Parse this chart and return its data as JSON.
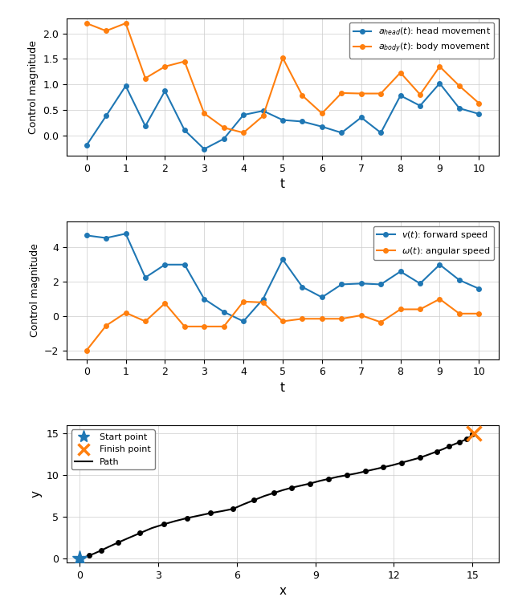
{
  "plot1": {
    "t": [
      0,
      0.5,
      1,
      1.5,
      2,
      2.5,
      3,
      3.5,
      4,
      4.5,
      5,
      5.5,
      6,
      6.5,
      7,
      7.5,
      8,
      8.5,
      9,
      9.5,
      10
    ],
    "head": [
      -0.2,
      0.38,
      0.97,
      0.18,
      0.87,
      0.1,
      -0.27,
      -0.07,
      0.4,
      0.48,
      0.3,
      0.27,
      0.17,
      0.05,
      0.35,
      0.05,
      0.78,
      0.58,
      1.02,
      0.53,
      0.42
    ],
    "body": [
      2.2,
      2.05,
      2.2,
      1.12,
      1.35,
      1.45,
      0.43,
      0.15,
      0.05,
      0.38,
      1.52,
      0.78,
      0.43,
      0.83,
      0.82,
      0.82,
      1.23,
      0.8,
      1.35,
      0.97,
      0.63
    ],
    "xlabel": "t",
    "ylabel": "Control magnitude",
    "label_head": "$a_{head}(t)$: head movement",
    "label_body": "$a_{body}(t)$: body movement",
    "ylim": [
      -0.4,
      2.3
    ]
  },
  "plot2": {
    "t": [
      0,
      0.5,
      1,
      1.5,
      2,
      2.5,
      3,
      3.5,
      4,
      4.5,
      5,
      5.5,
      6,
      6.5,
      7,
      7.5,
      8,
      8.5,
      9,
      9.5,
      10
    ],
    "v": [
      4.7,
      4.55,
      4.8,
      2.25,
      3.0,
      3.0,
      1.0,
      0.25,
      -0.3,
      1.0,
      3.3,
      1.7,
      1.1,
      1.85,
      1.9,
      1.85,
      2.6,
      1.9,
      3.0,
      2.1,
      1.6
    ],
    "omega": [
      -2.0,
      -0.55,
      0.2,
      -0.3,
      0.75,
      -0.6,
      -0.6,
      -0.6,
      0.85,
      0.8,
      -0.3,
      -0.15,
      -0.15,
      -0.15,
      0.05,
      -0.35,
      0.4,
      0.4,
      1.0,
      0.15,
      0.15
    ],
    "xlabel": "t",
    "ylabel": "Control magnitude",
    "label_v": "$v(t)$: forward speed",
    "label_omega": "$\\omega(t)$: angular speed",
    "ylim": [
      -2.5,
      5.5
    ]
  },
  "plot3": {
    "path_x": [
      0.0,
      0.1,
      0.2,
      0.35,
      0.55,
      0.8,
      1.1,
      1.45,
      1.85,
      2.3,
      2.75,
      3.2,
      3.65,
      4.1,
      4.55,
      5.0,
      5.45,
      5.85,
      6.25,
      6.65,
      7.05,
      7.4,
      7.75,
      8.1,
      8.45,
      8.8,
      9.15,
      9.5,
      9.85,
      10.2,
      10.55,
      10.9,
      11.25,
      11.6,
      11.95,
      12.3,
      12.65,
      13.0,
      13.35,
      13.65,
      13.9,
      14.1,
      14.3,
      14.5,
      14.65,
      14.78,
      14.88,
      14.95,
      15.0,
      15.05
    ],
    "path_y": [
      0.0,
      0.08,
      0.18,
      0.35,
      0.6,
      0.95,
      1.4,
      1.9,
      2.45,
      3.05,
      3.65,
      4.1,
      4.5,
      4.85,
      5.15,
      5.45,
      5.7,
      5.95,
      6.5,
      7.0,
      7.5,
      7.85,
      8.2,
      8.5,
      8.75,
      9.0,
      9.3,
      9.55,
      9.8,
      10.0,
      10.2,
      10.45,
      10.7,
      10.95,
      11.2,
      11.5,
      11.8,
      12.1,
      12.5,
      12.85,
      13.15,
      13.45,
      13.7,
      13.95,
      14.15,
      14.35,
      14.55,
      14.72,
      14.88,
      15.0
    ],
    "dot_x": [
      0.0,
      0.35,
      0.8,
      1.45,
      2.3,
      3.2,
      4.1,
      5.0,
      5.85,
      6.65,
      7.4,
      8.1,
      8.8,
      9.5,
      10.2,
      10.9,
      11.6,
      12.3,
      13.0,
      13.65,
      14.1,
      14.5,
      14.78,
      15.0
    ],
    "dot_y": [
      0.0,
      0.35,
      0.95,
      1.9,
      3.05,
      4.1,
      4.85,
      5.45,
      5.95,
      7.0,
      7.85,
      8.5,
      9.0,
      9.55,
      10.0,
      10.45,
      10.95,
      11.5,
      12.1,
      12.85,
      13.45,
      13.95,
      14.35,
      14.88
    ],
    "start_x": 0.0,
    "start_y": 0.0,
    "end_x": 15.05,
    "end_y": 15.0,
    "xlabel": "x",
    "ylabel": "y",
    "xlim": [
      -0.5,
      16.0
    ],
    "ylim": [
      -0.5,
      16.0
    ]
  },
  "blue_color": "#1f77b4",
  "orange_color": "#ff7f0e"
}
